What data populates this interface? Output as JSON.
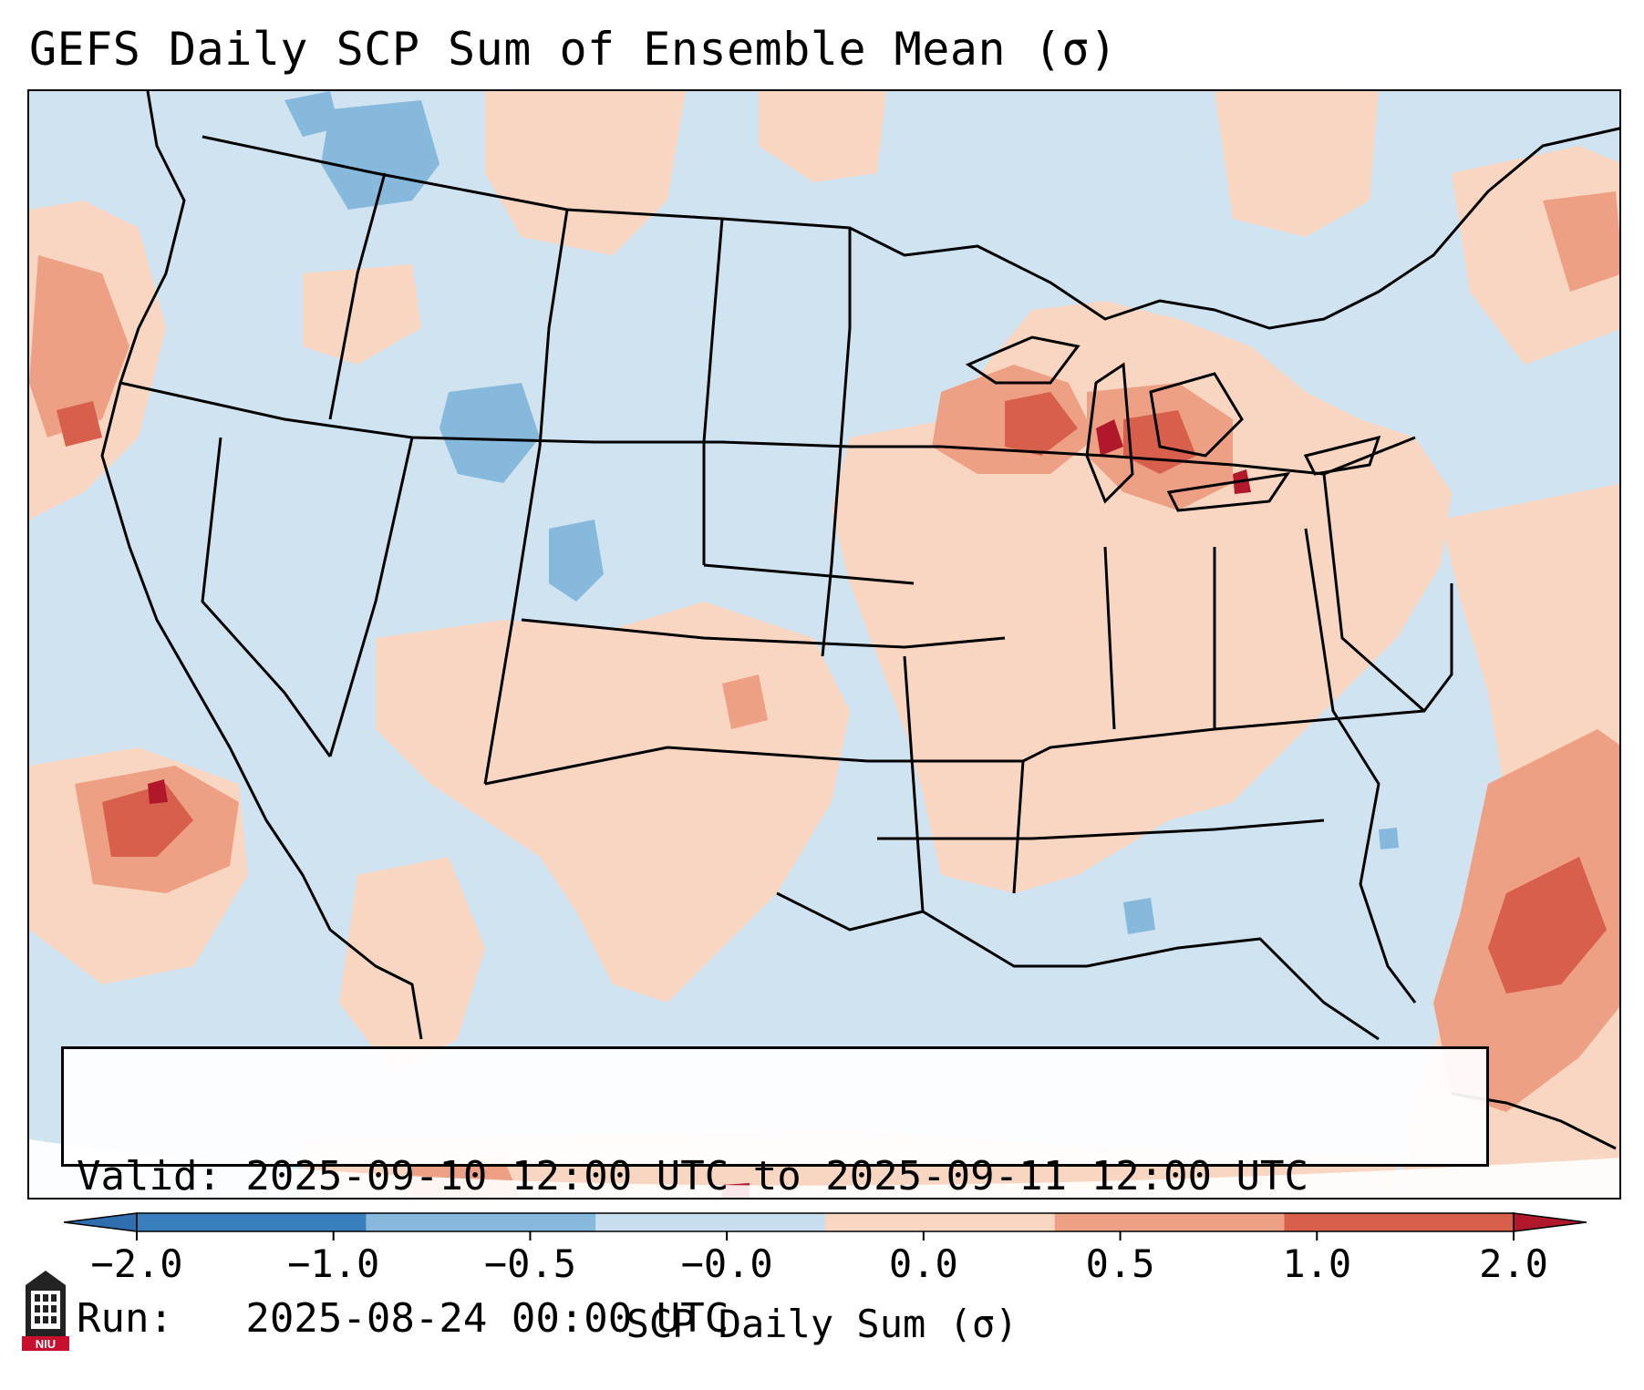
{
  "title": "GEFS Daily SCP Sum of Ensemble Mean (σ)",
  "info": {
    "valid": "Valid: 2025-09-10 12:00 UTC to 2025-09-11 12:00 UTC",
    "run": "Run:   2025-08-24 00:00 UTC"
  },
  "colorbar": {
    "label": "SCP Daily Sum (σ)",
    "ticks": [
      "−2.0",
      "−1.0",
      "−0.5",
      "−0.0",
      "0.0",
      "0.5",
      "1.0",
      "2.0"
    ],
    "bins": [
      "#3a7fbd",
      "#86b9dc",
      "#c7dff0",
      "#f9d6c2",
      "#eda083",
      "#d75f4c"
    ],
    "under_color": "#2f6fb0",
    "over_color": "#b2182b"
  },
  "map": {
    "background_color": "#cfe3f0",
    "icon": "contiguous-us-state-boundaries"
  },
  "logo": {
    "text": "NIU",
    "icon": "niu-tower-icon"
  }
}
